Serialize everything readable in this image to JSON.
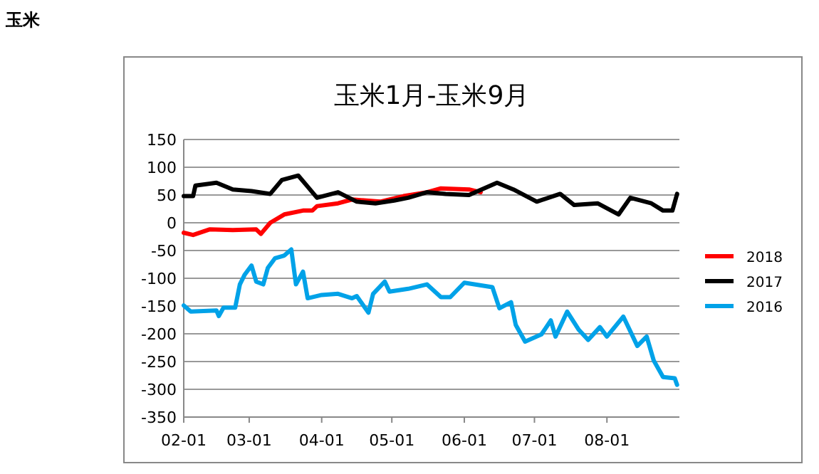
{
  "chart_data": {
    "type": "line",
    "title": "玉米",
    "subtitle": "玉米1月-玉米9月",
    "xlim": [
      "--02-01",
      "--09-01"
    ],
    "xticks": [
      {
        "value": "--02-01",
        "label": "02-01"
      },
      {
        "value": "--03-01",
        "label": "03-01"
      },
      {
        "value": "--04-01",
        "label": "04-01"
      },
      {
        "value": "--05-01",
        "label": "05-01"
      },
      {
        "value": "--06-01",
        "label": "06-01"
      },
      {
        "value": "--07-01",
        "label": "07-01"
      },
      {
        "value": "--08-01",
        "label": "08-01"
      }
    ],
    "ylim": [
      -350,
      150
    ],
    "yticks": [
      -350,
      -300,
      -250,
      -200,
      -150,
      -100,
      -50,
      0,
      50,
      100,
      150
    ],
    "grid": "y",
    "legend": "right",
    "marker": "none",
    "line_style": "solid",
    "series": [
      {
        "name": "2018",
        "color": "#ff0000",
        "x": [
          "--02-01",
          "--02-05",
          "--02-12",
          "--02-22",
          "--03-04",
          "--03-06",
          "--03-10",
          "--03-16",
          "--03-24",
          "--03-28",
          "--03-30",
          "--04-08",
          "--04-14",
          "--04-26",
          "--05-06",
          "--05-16",
          "--05-22",
          "--06-03",
          "--06-08"
        ],
        "values": [
          -18,
          -22,
          -12,
          -13,
          -12,
          -20,
          0,
          15,
          22,
          22,
          30,
          35,
          42,
          38,
          48,
          55,
          62,
          60,
          55
        ]
      },
      {
        "name": "2017",
        "color": "#000000",
        "x": [
          "--02-01",
          "--02-05",
          "--02-06",
          "--02-15",
          "--02-22",
          "--03-02",
          "--03-10",
          "--03-15",
          "--03-22",
          "--03-25",
          "--03-30",
          "--04-08",
          "--04-16",
          "--04-24",
          "--05-02",
          "--05-08",
          "--05-16",
          "--05-24",
          "--06-03",
          "--06-15",
          "--06-22",
          "--07-02",
          "--07-12",
          "--07-18",
          "--07-28",
          "--08-06",
          "--08-11",
          "--08-20",
          "--08-25",
          "--08-29",
          "--08-31"
        ],
        "values": [
          48,
          48,
          67,
          72,
          60,
          57,
          52,
          77,
          85,
          70,
          45,
          55,
          38,
          35,
          40,
          45,
          55,
          52,
          50,
          72,
          60,
          38,
          52,
          32,
          35,
          15,
          45,
          35,
          22,
          22,
          52
        ]
      },
      {
        "name": "2016",
        "color": "#00a2e8",
        "x": [
          "--02-01",
          "--02-04",
          "--02-15",
          "--02-16",
          "--02-18",
          "--02-23",
          "--02-25",
          "--02-27",
          "--03-02",
          "--03-04",
          "--03-07",
          "--03-09",
          "--03-12",
          "--03-16",
          "--03-19",
          "--03-21",
          "--03-24",
          "--03-26",
          "--04-01",
          "--04-08",
          "--04-14",
          "--04-16",
          "--04-21",
          "--04-23",
          "--04-28",
          "--04-30",
          "--05-08",
          "--05-16",
          "--05-22",
          "--05-26",
          "--06-01",
          "--06-13",
          "--06-16",
          "--06-21",
          "--06-23",
          "--06-27",
          "--07-04",
          "--07-08",
          "--07-10",
          "--07-15",
          "--07-20",
          "--07-24",
          "--07-29",
          "--08-01",
          "--08-08",
          "--08-14",
          "--08-18",
          "--08-21",
          "--08-25",
          "--08-30",
          "--08-31"
        ],
        "values": [
          -149,
          -160,
          -158,
          -168,
          -153,
          -153,
          -111,
          -94,
          -77,
          -106,
          -111,
          -81,
          -64,
          -59,
          -48,
          -111,
          -88,
          -136,
          -130,
          -128,
          -136,
          -132,
          -162,
          -128,
          -106,
          -124,
          -119,
          -111,
          -134,
          -134,
          -108,
          -116,
          -154,
          -143,
          -184,
          -214,
          -201,
          -176,
          -205,
          -160,
          -193,
          -211,
          -188,
          -205,
          -169,
          -222,
          -205,
          -248,
          -278,
          -280,
          -292
        ]
      }
    ]
  }
}
